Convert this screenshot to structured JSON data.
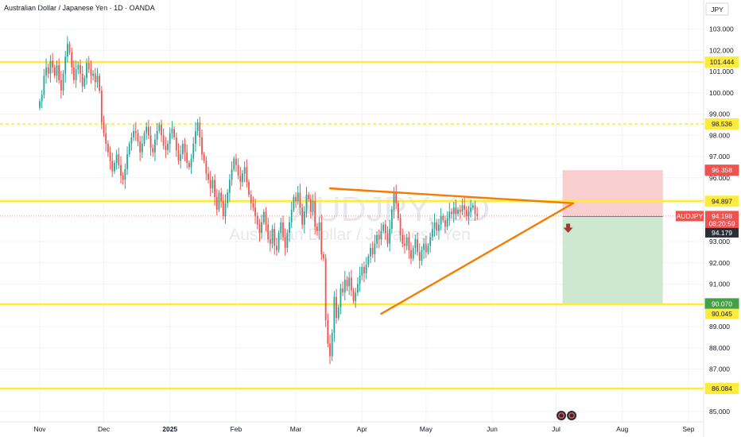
{
  "title": "Australian Dollar / Japanese Yen · 1D · OANDA",
  "watermark": {
    "symbol": "AUDJPY, 1D",
    "name": "Australian Dollar / Japanese Yen"
  },
  "currency_label": "JPY",
  "symbol_tag": "AUDJPY",
  "current_price": "94.198",
  "countdown": "08:20:59",
  "colors": {
    "up": "#26a69a",
    "down": "#ef5350",
    "level": "#ffeb3b",
    "trend": "#f57c00",
    "stop_zone": "#f7c6c6",
    "target_zone": "#c8e6c9"
  },
  "chart_data": {
    "type": "candlestick",
    "ylim": [
      84.6,
      103.6
    ],
    "y_ticks": [
      "103.000",
      "102.000",
      "101.000",
      "100.000",
      "99.000",
      "98.000",
      "97.000",
      "96.000",
      "95.000",
      "93.000",
      "92.000",
      "91.000",
      "89.000",
      "88.000",
      "87.000",
      "85.000"
    ],
    "x_ticks": [
      {
        "label": "Nov",
        "day": 0
      },
      {
        "label": "Dec",
        "day": 30
      },
      {
        "label": "2025",
        "day": 61,
        "bold": true
      },
      {
        "label": "Feb",
        "day": 92
      },
      {
        "label": "Mar",
        "day": 120
      },
      {
        "label": "Apr",
        "day": 151
      },
      {
        "label": "May",
        "day": 181
      },
      {
        "label": "Jun",
        "day": 212
      },
      {
        "label": "Jul",
        "day": 242
      },
      {
        "label": "Aug",
        "day": 273
      },
      {
        "label": "Sep",
        "day": 304
      }
    ],
    "levels": [
      {
        "value": 101.444,
        "label": "101.444",
        "style": "solid"
      },
      {
        "value": 98.536,
        "label": "98.536",
        "style": "dashed"
      },
      {
        "value": 94.897,
        "label": "94.897",
        "style": "solid"
      },
      {
        "value": 90.045,
        "label": "90.045",
        "style": "solid"
      },
      {
        "value": 86.084,
        "label": "86.084",
        "style": "solid"
      }
    ],
    "position": {
      "entry": 94.179,
      "stop": 96.358,
      "target": 90.07,
      "entry_label": "94.179",
      "stop_label": "96.358",
      "target_label": "90.070",
      "start_day": 245,
      "end_day": 292
    },
    "trendlines": [
      {
        "from": [
          136,
          95.5
        ],
        "to": [
          250,
          94.8
        ]
      },
      {
        "from": [
          160,
          89.6
        ],
        "to": [
          250,
          94.8
        ]
      }
    ],
    "closes": [
      [
        0,
        99.6
      ],
      [
        1,
        99.9
      ],
      [
        2,
        100.8
      ],
      [
        3,
        101.2
      ],
      [
        4,
        100.9
      ],
      [
        5,
        101.5
      ],
      [
        6,
        101.2
      ],
      [
        7,
        100.8
      ],
      [
        8,
        101.3
      ],
      [
        9,
        100.6
      ],
      [
        10,
        100.1
      ],
      [
        11,
        100.9
      ],
      [
        12,
        101.7
      ],
      [
        13,
        102.3
      ],
      [
        14,
        101.9
      ],
      [
        15,
        101.2
      ],
      [
        16,
        100.6
      ],
      [
        17,
        101.1
      ],
      [
        18,
        101.3
      ],
      [
        19,
        100.9
      ],
      [
        20,
        100.3
      ],
      [
        21,
        100.7
      ],
      [
        22,
        101.4
      ],
      [
        23,
        101.1
      ],
      [
        24,
        100.8
      ],
      [
        25,
        100.9
      ],
      [
        26,
        100.5
      ],
      [
        27,
        100.8
      ],
      [
        28,
        100.1
      ],
      [
        29,
        98.6
      ],
      [
        30,
        98.1
      ],
      [
        31,
        97.6
      ],
      [
        32,
        97.2
      ],
      [
        33,
        96.8
      ],
      [
        34,
        96.3
      ],
      [
        35,
        96.7
      ],
      [
        36,
        97.1
      ],
      [
        37,
        96.6
      ],
      [
        38,
        96.1
      ],
      [
        39,
        95.9
      ],
      [
        40,
        96.4
      ],
      [
        41,
        97.1
      ],
      [
        42,
        97.6
      ],
      [
        43,
        97.9
      ],
      [
        44,
        98.2
      ],
      [
        45,
        98.1
      ],
      [
        46,
        97.7
      ],
      [
        47,
        97.2
      ],
      [
        48,
        97.6
      ],
      [
        49,
        98.1
      ],
      [
        50,
        98.4
      ],
      [
        51,
        98.0
      ],
      [
        52,
        97.4
      ],
      [
        53,
        97.2
      ],
      [
        54,
        97.8
      ],
      [
        55,
        98.2
      ],
      [
        56,
        98.5
      ],
      [
        57,
        98.0
      ],
      [
        58,
        97.5
      ],
      [
        59,
        97.3
      ],
      [
        60,
        97.6
      ],
      [
        61,
        98.1
      ],
      [
        62,
        98.3
      ],
      [
        63,
        97.9
      ],
      [
        64,
        97.3
      ],
      [
        65,
        96.8
      ],
      [
        66,
        97.1
      ],
      [
        67,
        97.6
      ],
      [
        68,
        97.2
      ],
      [
        69,
        96.7
      ],
      [
        70,
        96.5
      ],
      [
        71,
        96.9
      ],
      [
        72,
        97.6
      ],
      [
        73,
        98.2
      ],
      [
        74,
        98.6
      ],
      [
        75,
        97.9
      ],
      [
        76,
        97.1
      ],
      [
        77,
        96.8
      ],
      [
        78,
        96.2
      ],
      [
        79,
        95.9
      ],
      [
        80,
        95.5
      ],
      [
        81,
        95.9
      ],
      [
        82,
        95.1
      ],
      [
        83,
        94.5
      ],
      [
        84,
        95.3
      ],
      [
        85,
        94.9
      ],
      [
        86,
        94.2
      ],
      [
        87,
        94.8
      ],
      [
        88,
        95.3
      ],
      [
        89,
        95.9
      ],
      [
        90,
        96.4
      ],
      [
        91,
        96.9
      ],
      [
        92,
        96.6
      ],
      [
        93,
        96.1
      ],
      [
        94,
        95.8
      ],
      [
        95,
        96.2
      ],
      [
        96,
        96.5
      ],
      [
        97,
        95.8
      ],
      [
        98,
        95.2
      ],
      [
        99,
        94.8
      ],
      [
        100,
        94.6
      ],
      [
        101,
        94.2
      ],
      [
        102,
        93.8
      ],
      [
        103,
        93.4
      ],
      [
        104,
        93.9
      ],
      [
        105,
        94.4
      ],
      [
        106,
        93.8
      ],
      [
        107,
        93.1
      ],
      [
        108,
        92.9
      ],
      [
        109,
        93.6
      ],
      [
        110,
        92.8
      ],
      [
        111,
        92.6
      ],
      [
        112,
        93.4
      ],
      [
        113,
        93.9
      ],
      [
        114,
        93.2
      ],
      [
        115,
        92.7
      ],
      [
        116,
        93.4
      ],
      [
        117,
        93.9
      ],
      [
        118,
        94.5
      ],
      [
        119,
        95.1
      ],
      [
        120,
        94.9
      ],
      [
        121,
        95.3
      ],
      [
        122,
        94.6
      ],
      [
        123,
        93.8
      ],
      [
        124,
        94.4
      ],
      [
        125,
        95.2
      ],
      [
        126,
        95.0
      ],
      [
        127,
        94.4
      ],
      [
        128,
        94.9
      ],
      [
        129,
        93.7
      ],
      [
        130,
        93.5
      ],
      [
        131,
        93.9
      ],
      [
        132,
        92.4
      ],
      [
        133,
        92.2
      ],
      [
        134,
        89.3
      ],
      [
        135,
        88.2
      ],
      [
        136,
        87.6
      ],
      [
        137,
        88.7
      ],
      [
        138,
        90.4
      ],
      [
        139,
        89.4
      ],
      [
        140,
        89.9
      ],
      [
        141,
        90.8
      ],
      [
        142,
        90.6
      ],
      [
        143,
        91.2
      ],
      [
        144,
        90.9
      ],
      [
        145,
        91.3
      ],
      [
        146,
        90.7
      ],
      [
        147,
        90.2
      ],
      [
        148,
        90.6
      ],
      [
        149,
        91.0
      ],
      [
        150,
        91.4
      ],
      [
        151,
        91.8
      ],
      [
        152,
        91.5
      ],
      [
        153,
        91.9
      ],
      [
        154,
        92.3
      ],
      [
        155,
        92.7
      ],
      [
        156,
        92.4
      ],
      [
        157,
        92.9
      ],
      [
        158,
        93.3
      ],
      [
        159,
        93.1
      ],
      [
        160,
        93.5
      ],
      [
        161,
        93.8
      ],
      [
        162,
        93.4
      ],
      [
        163,
        92.9
      ],
      [
        164,
        93.6
      ],
      [
        165,
        94.5
      ],
      [
        166,
        95.3
      ],
      [
        167,
        94.8
      ],
      [
        168,
        94.1
      ],
      [
        169,
        93.3
      ],
      [
        170,
        92.9
      ],
      [
        171,
        92.8
      ],
      [
        172,
        93.2
      ],
      [
        173,
        92.6
      ],
      [
        174,
        92.2
      ],
      [
        175,
        92.7
      ],
      [
        176,
        93.1
      ],
      [
        177,
        92.5
      ],
      [
        178,
        92.1
      ],
      [
        179,
        92.6
      ],
      [
        180,
        92.9
      ],
      [
        181,
        92.5
      ],
      [
        182,
        92.8
      ],
      [
        183,
        93.2
      ],
      [
        184,
        93.6
      ],
      [
        185,
        93.9
      ],
      [
        186,
        93.5
      ],
      [
        187,
        93.8
      ],
      [
        188,
        94.2
      ],
      [
        189,
        94.0
      ],
      [
        190,
        93.7
      ],
      [
        191,
        94.1
      ],
      [
        192,
        94.4
      ],
      [
        193,
        94.3
      ],
      [
        194,
        94.6
      ],
      [
        195,
        94.3
      ],
      [
        196,
        94.5
      ],
      [
        197,
        94.4
      ],
      [
        198,
        94.7
      ],
      [
        199,
        94.5
      ],
      [
        200,
        94.2
      ],
      [
        201,
        94.4
      ],
      [
        202,
        94.6
      ],
      [
        203,
        94.7
      ],
      [
        204,
        94.3
      ],
      [
        205,
        94.2
      ]
    ]
  }
}
